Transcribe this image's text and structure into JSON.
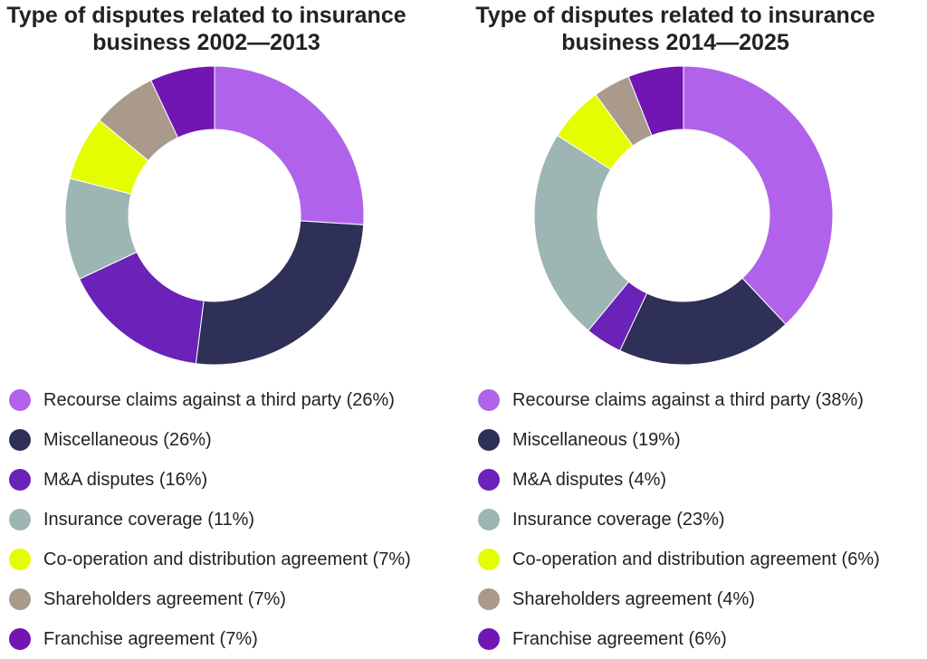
{
  "chart_data": [
    {
      "type": "pie",
      "title": [
        "Type of disputes related to insurance",
        "business 2002—2013"
      ],
      "categories": [
        "Recourse claims against a third party",
        "Miscellaneous",
        "M&A disputes",
        "Insurance coverage",
        "Co-operation and distribution agreement",
        "Shareholders agreement",
        "Franchise agreement"
      ],
      "values": [
        26,
        26,
        16,
        11,
        7,
        7,
        7
      ],
      "legend_labels": [
        "Recourse claims against a third party (26%)",
        "Miscellaneous (26%)",
        "M&A disputes (16%)",
        "Insurance coverage (11%)",
        "Co-operation and distribution agreement (7%)",
        "Shareholders agreement (7%)",
        "Franchise agreement (7%)"
      ],
      "colors": [
        "#b063ea",
        "#2e3058",
        "#6a22b8",
        "#9db6b3",
        "#e4fd00",
        "#a99a8b",
        "#7115b3"
      ],
      "legend_placement": "bottom"
    },
    {
      "type": "pie",
      "title": [
        "Type of disputes related to insurance",
        "business 2014—2025"
      ],
      "categories": [
        "Recourse claims against a third party",
        "Miscellaneous",
        "M&A disputes",
        "Insurance coverage",
        "Co-operation and distribution agreement",
        "Shareholders agreement",
        "Franchise agreement"
      ],
      "values": [
        38,
        19,
        4,
        23,
        6,
        4,
        6
      ],
      "legend_labels": [
        "Recourse claims against a third party (38%)",
        "Miscellaneous (19%)",
        "M&A disputes (4%)",
        "Insurance coverage (23%)",
        "Co-operation and distribution agreement (6%)",
        "Shareholders agreement (4%)",
        "Franchise agreement (6%)"
      ],
      "colors": [
        "#b063ea",
        "#2e3058",
        "#6a22b8",
        "#9db6b3",
        "#e4fd00",
        "#a99a8b",
        "#7115b3"
      ],
      "legend_placement": "bottom"
    }
  ]
}
